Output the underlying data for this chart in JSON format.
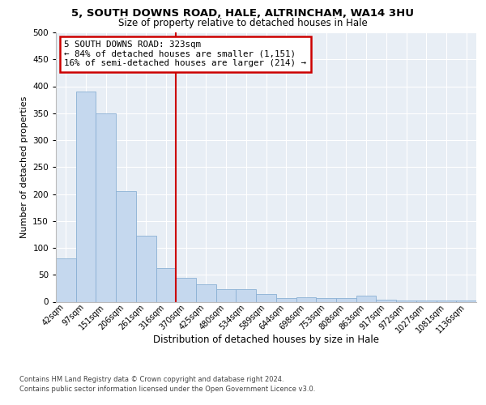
{
  "title1": "5, SOUTH DOWNS ROAD, HALE, ALTRINCHAM, WA14 3HU",
  "title2": "Size of property relative to detached houses in Hale",
  "xlabel": "Distribution of detached houses by size in Hale",
  "ylabel": "Number of detached properties",
  "categories": [
    "42sqm",
    "97sqm",
    "151sqm",
    "206sqm",
    "261sqm",
    "316sqm",
    "370sqm",
    "425sqm",
    "480sqm",
    "534sqm",
    "589sqm",
    "644sqm",
    "698sqm",
    "753sqm",
    "808sqm",
    "863sqm",
    "917sqm",
    "972sqm",
    "1027sqm",
    "1081sqm",
    "1136sqm"
  ],
  "values": [
    80,
    390,
    350,
    205,
    122,
    63,
    45,
    32,
    23,
    24,
    14,
    7,
    9,
    7,
    7,
    11,
    4,
    2,
    2,
    2,
    3
  ],
  "bar_color": "#c5d8ee",
  "bar_edge_color": "#8ab0d4",
  "vline_x": 5.5,
  "vline_color": "#cc0000",
  "annotation_line1": "5 SOUTH DOWNS ROAD: 323sqm",
  "annotation_line2": "← 84% of detached houses are smaller (1,151)",
  "annotation_line3": "16% of semi-detached houses are larger (214) →",
  "annotation_box_facecolor": "#ffffff",
  "annotation_box_edgecolor": "#cc0000",
  "ylim": [
    0,
    500
  ],
  "yticks": [
    0,
    50,
    100,
    150,
    200,
    250,
    300,
    350,
    400,
    450,
    500
  ],
  "bg_color": "#e8eef5",
  "grid_color": "#ffffff",
  "footer_line1": "Contains HM Land Registry data © Crown copyright and database right 2024.",
  "footer_line2": "Contains public sector information licensed under the Open Government Licence v3.0."
}
